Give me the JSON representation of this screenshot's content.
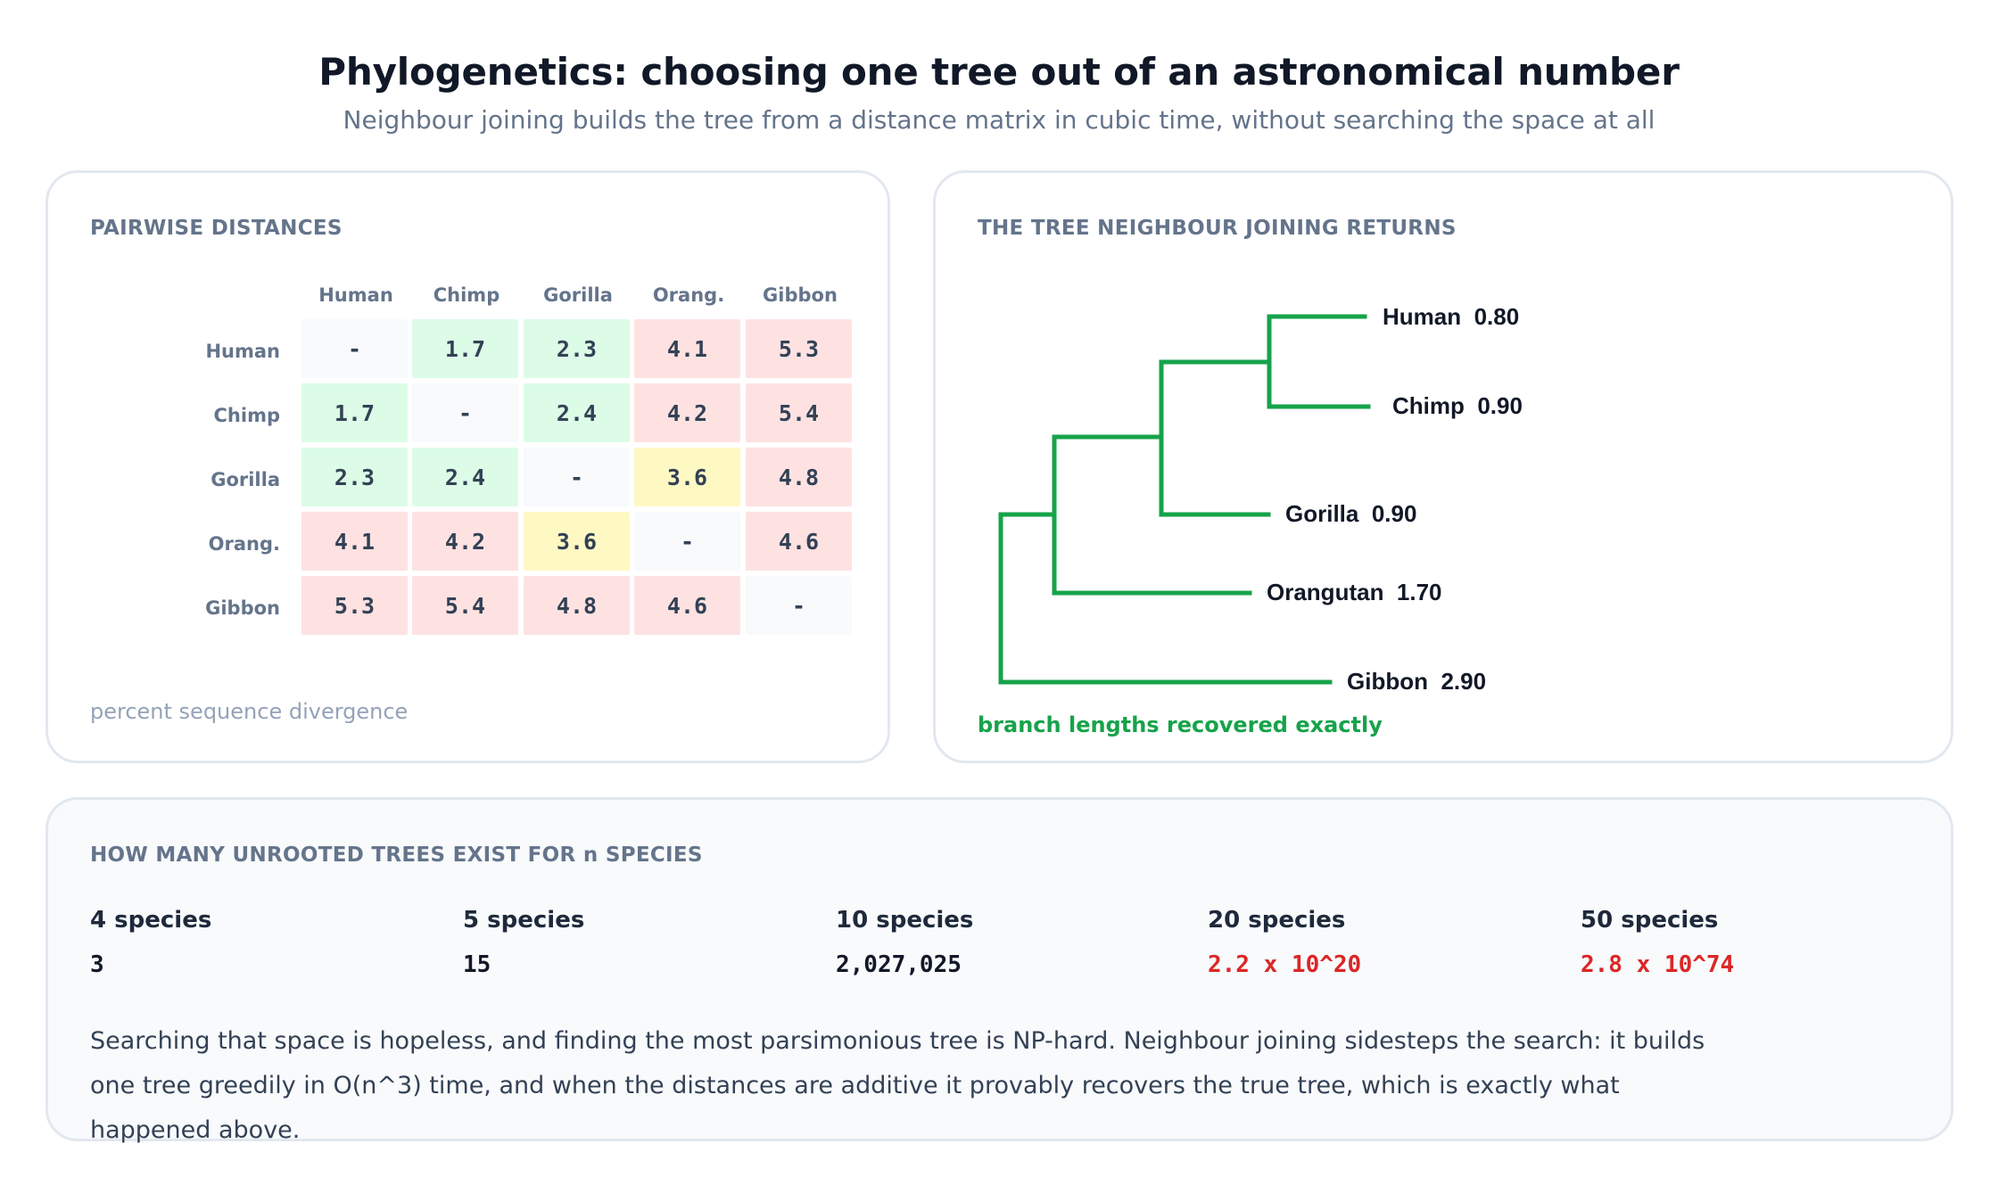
{
  "header": {
    "title": "Phylogenetics: choosing one tree out of an astronomical number",
    "subtitle": "Neighbour joining builds the tree from a distance matrix in cubic time, without searching the space at all"
  },
  "distances": {
    "heading": "PAIRWISE DISTANCES",
    "columns": [
      "Human",
      "Chimp",
      "Gorilla",
      "Orang.",
      "Gibbon"
    ],
    "rows": [
      "Human",
      "Chimp",
      "Gorilla",
      "Orang.",
      "Gibbon"
    ],
    "cells": [
      [
        "-",
        "1.7",
        "2.3",
        "4.1",
        "5.3"
      ],
      [
        "1.7",
        "-",
        "2.4",
        "4.2",
        "5.4"
      ],
      [
        "2.3",
        "2.4",
        "-",
        "3.6",
        "4.8"
      ],
      [
        "4.1",
        "4.2",
        "3.6",
        "-",
        "4.6"
      ],
      [
        "5.3",
        "5.4",
        "4.8",
        "4.6",
        "-"
      ]
    ],
    "shade_colors": {
      "diagonal": "#f8fafc",
      "near": "#dcfce7",
      "mid": "#fef9c3",
      "far": "#fee2e2"
    },
    "caption": "percent sequence divergence"
  },
  "tree": {
    "heading": "THE TREE NEIGHBOUR JOINING RETURNS",
    "branch_color": "#16a34a",
    "leaves": [
      {
        "name": "Human",
        "length": "0.80"
      },
      {
        "name": "Chimp",
        "length": "0.90"
      },
      {
        "name": "Gorilla",
        "length": "0.90"
      },
      {
        "name": "Orangutan",
        "length": "1.70"
      },
      {
        "name": "Gibbon",
        "length": "2.90"
      }
    ],
    "caption": "branch lengths recovered exactly"
  },
  "counts": {
    "heading": "HOW MANY UNROOTED TREES EXIST FOR n SPECIES",
    "items": [
      {
        "label": "4 species",
        "value": "3",
        "highlight": false
      },
      {
        "label": "5 species",
        "value": "15",
        "highlight": false
      },
      {
        "label": "10 species",
        "value": "2,027,025",
        "highlight": false
      },
      {
        "label": "20 species",
        "value": "2.2 x 10^20",
        "highlight": true
      },
      {
        "label": "50 species",
        "value": "2.8 x 10^74",
        "highlight": true
      }
    ],
    "highlight_color": "#dc2626",
    "explanation": "Searching that space is hopeless, and finding the most parsimonious tree is NP-hard. Neighbour joining sidesteps the search: it builds one tree greedily in O(n^3) time, and when the distances are additive it provably recovers the true tree, which is exactly what happened above."
  }
}
